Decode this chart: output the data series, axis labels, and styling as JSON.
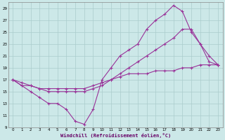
{
  "xlabel": "Windchill (Refroidissement éolien,°C)",
  "bg_color": "#cce8e8",
  "grid_color": "#aacccc",
  "line_color": "#993399",
  "ylim": [
    9,
    30
  ],
  "xlim": [
    -0.5,
    23.5
  ],
  "yticks": [
    9,
    11,
    13,
    15,
    17,
    19,
    21,
    23,
    25,
    27,
    29
  ],
  "xticks": [
    0,
    1,
    2,
    3,
    4,
    5,
    6,
    7,
    8,
    9,
    10,
    11,
    12,
    13,
    14,
    15,
    16,
    17,
    18,
    19,
    20,
    21,
    22,
    23
  ],
  "line1_x": [
    0,
    1,
    2,
    3,
    4,
    5,
    6,
    7,
    8,
    9,
    10,
    11,
    12,
    13,
    14,
    15,
    16,
    17,
    18,
    19,
    20,
    21,
    22,
    23
  ],
  "line1_y": [
    17,
    16,
    15,
    14,
    13,
    13,
    12,
    10,
    9.5,
    12,
    17,
    19,
    21,
    22,
    23,
    25.5,
    27,
    28,
    29.5,
    28.5,
    25,
    23,
    20,
    19.5
  ],
  "line2_x": [
    0,
    1,
    2,
    3,
    4,
    5,
    6,
    7,
    8,
    9,
    10,
    11,
    12,
    13,
    14,
    15,
    16,
    17,
    18,
    19,
    20,
    21,
    22,
    23
  ],
  "line2_y": [
    17,
    16.5,
    16,
    15.5,
    15,
    15,
    15,
    15,
    15,
    15.5,
    16,
    17,
    18,
    19,
    20,
    21,
    22,
    23,
    24,
    25.5,
    25.5,
    23,
    21,
    19.5
  ],
  "line3_x": [
    0,
    1,
    2,
    3,
    4,
    5,
    6,
    7,
    8,
    9,
    10,
    11,
    12,
    13,
    14,
    15,
    16,
    17,
    18,
    19,
    20,
    21,
    22,
    23
  ],
  "line3_y": [
    17,
    16,
    16,
    15.5,
    15.5,
    15.5,
    15.5,
    15.5,
    15.5,
    16,
    16.5,
    17,
    17.5,
    18,
    18,
    18,
    18.5,
    18.5,
    18.5,
    19,
    19,
    19.5,
    19.5,
    19.5
  ]
}
